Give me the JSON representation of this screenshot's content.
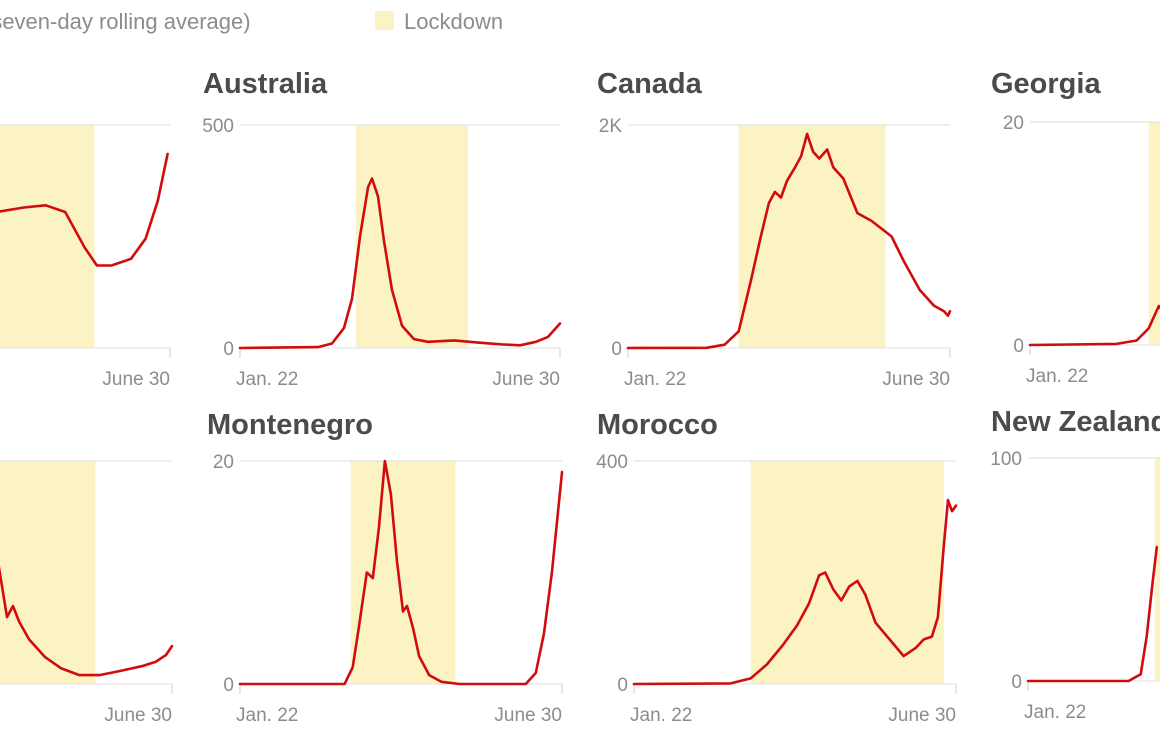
{
  "legend": {
    "series_label": "(seven-day rolling average)",
    "lockdown_label": "Lockdown",
    "lockdown_color": "#fcf3c5"
  },
  "line_color": "#d10c0c",
  "chart_data": [
    {
      "type": "line",
      "title": "",
      "x_start_label": "Jan. 22",
      "x_end_label": "June 30",
      "x_domain": [
        "Jan. 22",
        "June 30"
      ],
      "yticks": [],
      "ylim": [
        0,
        1
      ],
      "lockdown": [
        "2020-03-12",
        "2020-05-30"
      ],
      "series": [
        {
          "values": [
            {
              "x": "2020-03-01",
              "y": 0.4
            },
            {
              "x": "2020-03-05",
              "y": 0.32
            },
            {
              "x": "2020-03-10",
              "y": 0.27
            },
            {
              "x": "2020-03-16",
              "y": 0.29
            },
            {
              "x": "2020-03-24",
              "y": 0.36
            },
            {
              "x": "2020-04-02",
              "y": 0.39
            },
            {
              "x": "2020-04-10",
              "y": 0.55
            },
            {
              "x": "2020-04-20",
              "y": 0.61
            },
            {
              "x": "2020-05-01",
              "y": 0.63
            },
            {
              "x": "2020-05-10",
              "y": 0.64
            },
            {
              "x": "2020-05-18",
              "y": 0.61
            },
            {
              "x": "2020-05-26",
              "y": 0.45
            },
            {
              "x": "2020-05-31",
              "y": 0.37
            },
            {
              "x": "2020-06-06",
              "y": 0.37
            },
            {
              "x": "2020-06-14",
              "y": 0.4
            },
            {
              "x": "2020-06-20",
              "y": 0.49
            },
            {
              "x": "2020-06-25",
              "y": 0.66
            },
            {
              "x": "2020-06-29",
              "y": 0.87
            }
          ]
        }
      ]
    },
    {
      "type": "line",
      "title": "Australia",
      "x_start_label": "Jan. 22",
      "x_end_label": "June 30",
      "x_domain": [
        "Jan. 22",
        "June 30"
      ],
      "yticks": [
        "500",
        "0"
      ],
      "ylim": [
        0,
        500
      ],
      "lockdown": [
        "2020-03-20",
        "2020-05-15"
      ],
      "series": [
        {
          "values": [
            {
              "x": "2020-01-22",
              "y": 0
            },
            {
              "x": "2020-03-01",
              "y": 2
            },
            {
              "x": "2020-03-08",
              "y": 10
            },
            {
              "x": "2020-03-14",
              "y": 45
            },
            {
              "x": "2020-03-18",
              "y": 110
            },
            {
              "x": "2020-03-22",
              "y": 250
            },
            {
              "x": "2020-03-26",
              "y": 360
            },
            {
              "x": "2020-03-28",
              "y": 380
            },
            {
              "x": "2020-03-31",
              "y": 340
            },
            {
              "x": "2020-04-03",
              "y": 240
            },
            {
              "x": "2020-04-07",
              "y": 130
            },
            {
              "x": "2020-04-12",
              "y": 50
            },
            {
              "x": "2020-04-18",
              "y": 20
            },
            {
              "x": "2020-04-25",
              "y": 14
            },
            {
              "x": "2020-05-08",
              "y": 17
            },
            {
              "x": "2020-05-20",
              "y": 12
            },
            {
              "x": "2020-06-01",
              "y": 8
            },
            {
              "x": "2020-06-10",
              "y": 6
            },
            {
              "x": "2020-06-18",
              "y": 14
            },
            {
              "x": "2020-06-24",
              "y": 25
            },
            {
              "x": "2020-06-30",
              "y": 55
            }
          ]
        }
      ]
    },
    {
      "type": "line",
      "title": "Canada",
      "x_start_label": "Jan. 22",
      "x_end_label": "June 30",
      "x_domain": [
        "Jan. 22",
        "June 30"
      ],
      "yticks": [
        "2K",
        "0"
      ],
      "ylim": [
        0,
        2000
      ],
      "lockdown": [
        "2020-03-17",
        "2020-05-29"
      ],
      "series": [
        {
          "values": [
            {
              "x": "2020-01-22",
              "y": 0
            },
            {
              "x": "2020-03-01",
              "y": 2
            },
            {
              "x": "2020-03-10",
              "y": 30
            },
            {
              "x": "2020-03-17",
              "y": 150
            },
            {
              "x": "2020-03-23",
              "y": 600
            },
            {
              "x": "2020-03-28",
              "y": 1000
            },
            {
              "x": "2020-04-01",
              "y": 1300
            },
            {
              "x": "2020-04-04",
              "y": 1400
            },
            {
              "x": "2020-04-07",
              "y": 1350
            },
            {
              "x": "2020-04-10",
              "y": 1500
            },
            {
              "x": "2020-04-14",
              "y": 1620
            },
            {
              "x": "2020-04-17",
              "y": 1720
            },
            {
              "x": "2020-04-20",
              "y": 1920
            },
            {
              "x": "2020-04-23",
              "y": 1760
            },
            {
              "x": "2020-04-26",
              "y": 1700
            },
            {
              "x": "2020-04-30",
              "y": 1780
            },
            {
              "x": "2020-05-03",
              "y": 1620
            },
            {
              "x": "2020-05-08",
              "y": 1520
            },
            {
              "x": "2020-05-15",
              "y": 1210
            },
            {
              "x": "2020-05-22",
              "y": 1140
            },
            {
              "x": "2020-06-01",
              "y": 1000
            },
            {
              "x": "2020-06-07",
              "y": 780
            },
            {
              "x": "2020-06-15",
              "y": 520
            },
            {
              "x": "2020-06-22",
              "y": 380
            },
            {
              "x": "2020-06-27",
              "y": 330
            },
            {
              "x": "2020-06-29",
              "y": 290
            },
            {
              "x": "2020-06-30",
              "y": 330
            }
          ]
        }
      ]
    },
    {
      "type": "line",
      "title": "Georgia",
      "x_start_label": "Jan. 22",
      "x_end_label": "",
      "x_domain": [
        "Jan. 22",
        "June 30"
      ],
      "yticks": [
        "20",
        "0"
      ],
      "ylim": [
        0,
        20
      ],
      "lockdown": [
        "2020-03-21",
        "2020-05-22"
      ],
      "series": [
        {
          "values": [
            {
              "x": "2020-01-22",
              "y": 0
            },
            {
              "x": "2020-03-05",
              "y": 0.1
            },
            {
              "x": "2020-03-15",
              "y": 0.4
            },
            {
              "x": "2020-03-21",
              "y": 1.5
            },
            {
              "x": "2020-03-26",
              "y": 3.5
            },
            {
              "x": "2020-03-29",
              "y": 2.8
            },
            {
              "x": "2020-04-02",
              "y": 5.0
            },
            {
              "x": "2020-04-05",
              "y": 5.8
            }
          ]
        }
      ]
    },
    {
      "type": "line",
      "title": "",
      "x_start_label": "",
      "x_end_label": "June 30",
      "x_domain": [
        "Jan. 22",
        "June 30"
      ],
      "yticks": [],
      "ylim": [
        0,
        1
      ],
      "lockdown": [
        "2020-03-16",
        "2020-05-23"
      ],
      "series": [
        {
          "values": [
            {
              "x": "2020-03-01",
              "y": 0.3
            },
            {
              "x": "2020-03-06",
              "y": 0.55
            },
            {
              "x": "2020-03-10",
              "y": 0.82
            },
            {
              "x": "2020-03-14",
              "y": 0.96
            },
            {
              "x": "2020-03-17",
              "y": 1.0
            },
            {
              "x": "2020-03-20",
              "y": 0.86
            },
            {
              "x": "2020-03-23",
              "y": 0.93
            },
            {
              "x": "2020-03-26",
              "y": 0.78
            },
            {
              "x": "2020-03-30",
              "y": 0.81
            },
            {
              "x": "2020-04-04",
              "y": 0.58
            },
            {
              "x": "2020-04-09",
              "y": 0.3
            },
            {
              "x": "2020-04-12",
              "y": 0.35
            },
            {
              "x": "2020-04-15",
              "y": 0.28
            },
            {
              "x": "2020-04-20",
              "y": 0.2
            },
            {
              "x": "2020-04-28",
              "y": 0.12
            },
            {
              "x": "2020-05-06",
              "y": 0.07
            },
            {
              "x": "2020-05-15",
              "y": 0.04
            },
            {
              "x": "2020-05-25",
              "y": 0.04
            },
            {
              "x": "2020-06-05",
              "y": 0.06
            },
            {
              "x": "2020-06-15",
              "y": 0.08
            },
            {
              "x": "2020-06-22",
              "y": 0.1
            },
            {
              "x": "2020-06-27",
              "y": 0.13
            },
            {
              "x": "2020-06-30",
              "y": 0.17
            }
          ]
        }
      ]
    },
    {
      "type": "line",
      "title": "Montenegro",
      "x_start_label": "Jan. 22",
      "x_end_label": "June 30",
      "x_domain": [
        "Jan. 22",
        "June 30"
      ],
      "yticks": [
        "20",
        "0"
      ],
      "ylim": [
        0,
        20
      ],
      "lockdown": [
        "2020-03-17",
        "2020-05-08"
      ],
      "series": [
        {
          "values": [
            {
              "x": "2020-01-22",
              "y": 0
            },
            {
              "x": "2020-03-14",
              "y": 0
            },
            {
              "x": "2020-03-18",
              "y": 1.5
            },
            {
              "x": "2020-03-21",
              "y": 5
            },
            {
              "x": "2020-03-25",
              "y": 10
            },
            {
              "x": "2020-03-28",
              "y": 9.5
            },
            {
              "x": "2020-03-31",
              "y": 14
            },
            {
              "x": "2020-04-03",
              "y": 20
            },
            {
              "x": "2020-04-06",
              "y": 17
            },
            {
              "x": "2020-04-09",
              "y": 11
            },
            {
              "x": "2020-04-12",
              "y": 6.5
            },
            {
              "x": "2020-04-14",
              "y": 7
            },
            {
              "x": "2020-04-17",
              "y": 5
            },
            {
              "x": "2020-04-20",
              "y": 2.5
            },
            {
              "x": "2020-04-25",
              "y": 0.8
            },
            {
              "x": "2020-05-01",
              "y": 0.2
            },
            {
              "x": "2020-05-10",
              "y": 0
            },
            {
              "x": "2020-06-12",
              "y": 0
            },
            {
              "x": "2020-06-17",
              "y": 1
            },
            {
              "x": "2020-06-21",
              "y": 4.5
            },
            {
              "x": "2020-06-25",
              "y": 10
            },
            {
              "x": "2020-06-30",
              "y": 19
            }
          ]
        }
      ]
    },
    {
      "type": "line",
      "title": "Morocco",
      "x_start_label": "Jan. 22",
      "x_end_label": "June 30",
      "x_domain": [
        "Jan. 22",
        "June 30"
      ],
      "yticks": [
        "400",
        "0"
      ],
      "ylim": [
        0,
        400
      ],
      "lockdown": [
        "2020-03-20",
        "2020-06-24"
      ],
      "series": [
        {
          "values": [
            {
              "x": "2020-01-22",
              "y": 0
            },
            {
              "x": "2020-03-10",
              "y": 1
            },
            {
              "x": "2020-03-20",
              "y": 10
            },
            {
              "x": "2020-03-28",
              "y": 35
            },
            {
              "x": "2020-04-05",
              "y": 70
            },
            {
              "x": "2020-04-12",
              "y": 105
            },
            {
              "x": "2020-04-18",
              "y": 145
            },
            {
              "x": "2020-04-23",
              "y": 195
            },
            {
              "x": "2020-04-26",
              "y": 200
            },
            {
              "x": "2020-04-30",
              "y": 170
            },
            {
              "x": "2020-05-04",
              "y": 150
            },
            {
              "x": "2020-05-08",
              "y": 175
            },
            {
              "x": "2020-05-12",
              "y": 185
            },
            {
              "x": "2020-05-16",
              "y": 160
            },
            {
              "x": "2020-05-21",
              "y": 110
            },
            {
              "x": "2020-05-28",
              "y": 80
            },
            {
              "x": "2020-06-04",
              "y": 50
            },
            {
              "x": "2020-06-10",
              "y": 65
            },
            {
              "x": "2020-06-14",
              "y": 80
            },
            {
              "x": "2020-06-18",
              "y": 85
            },
            {
              "x": "2020-06-21",
              "y": 120
            },
            {
              "x": "2020-06-24",
              "y": 250
            },
            {
              "x": "2020-06-26",
              "y": 330
            },
            {
              "x": "2020-06-28",
              "y": 310
            },
            {
              "x": "2020-06-30",
              "y": 320
            }
          ]
        }
      ]
    },
    {
      "type": "line",
      "title": "New Zealand",
      "x_start_label": "Jan. 22",
      "x_end_label": "",
      "x_domain": [
        "Jan. 22",
        "June 30"
      ],
      "yticks": [
        "100",
        "0"
      ],
      "ylim": [
        0,
        100
      ],
      "lockdown": [
        "2020-03-25",
        "2020-05-13"
      ],
      "series": [
        {
          "values": [
            {
              "x": "2020-01-22",
              "y": 0
            },
            {
              "x": "2020-03-12",
              "y": 0
            },
            {
              "x": "2020-03-18",
              "y": 3
            },
            {
              "x": "2020-03-21",
              "y": 20
            },
            {
              "x": "2020-03-24",
              "y": 45
            },
            {
              "x": "2020-03-26",
              "y": 60
            }
          ]
        }
      ]
    }
  ]
}
